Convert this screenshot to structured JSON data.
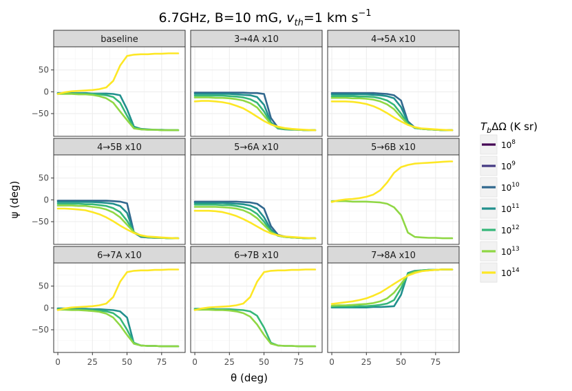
{
  "chart_data": {
    "type": "line",
    "title": "6.7GHz, B=10 mG, v_th=1 km s^-1",
    "title_parts": {
      "prefix": "6.7GHz, B=10 mG, ",
      "var": "v",
      "var_sub": "th",
      "mid": "=1 km s",
      "sup": "−1"
    },
    "xlabel": "θ (deg)",
    "ylabel": "ψ (deg)",
    "xlim": [
      -3,
      92
    ],
    "ylim": [
      -102,
      103
    ],
    "x_ticks": [
      0,
      25,
      50,
      75
    ],
    "x_tick_labels": [
      "0",
      "25",
      "50",
      "75"
    ],
    "y_ticks": [
      50,
      0,
      -50
    ],
    "y_tick_labels": [
      "50",
      "0",
      "−50"
    ],
    "legend": {
      "title_var": "T",
      "title_sub": "b",
      "title_rest": "ΔΩ (K sr)",
      "entries": [
        {
          "base": "10",
          "exp": "8",
          "color": "#440154"
        },
        {
          "base": "10",
          "exp": "9",
          "color": "#443a83"
        },
        {
          "base": "10",
          "exp": "10",
          "color": "#31688e"
        },
        {
          "base": "10",
          "exp": "11",
          "color": "#21908d"
        },
        {
          "base": "10",
          "exp": "12",
          "color": "#35b779"
        },
        {
          "base": "10",
          "exp": "13",
          "color": "#8fd744"
        },
        {
          "base": "10",
          "exp": "14",
          "color": "#fde725"
        }
      ]
    },
    "x": [
      0,
      5,
      10,
      15,
      20,
      25,
      30,
      35,
      40,
      45,
      50,
      55,
      60,
      65,
      70,
      75,
      80,
      85,
      87
    ],
    "panels": [
      {
        "label": "baseline",
        "series": [
          {
            "name": "1e11",
            "color": "#21908d",
            "values": [
              -3,
              -3,
              -3,
              -3,
              -3,
              -4,
              -4,
              -4,
              -5,
              -8,
              -40,
              -80,
              -85,
              -86,
              -87,
              -87,
              -88,
              -88,
              -88
            ]
          },
          {
            "name": "1e12",
            "color": "#35b779",
            "values": [
              -4,
              -4,
              -4,
              -4,
              -5,
              -5,
              -6,
              -8,
              -12,
              -25,
              -55,
              -82,
              -86,
              -87,
              -87,
              -88,
              -88,
              -88,
              -88
            ]
          },
          {
            "name": "1e13",
            "color": "#8fd744",
            "values": [
              -5,
              -5,
              -5,
              -6,
              -6,
              -7,
              -10,
              -15,
              -25,
              -45,
              -65,
              -84,
              -86,
              -87,
              -87,
              -88,
              -88,
              -88,
              -88
            ]
          },
          {
            "name": "1e14",
            "color": "#fde725",
            "values": [
              -5,
              -1,
              1,
              2,
              3,
              4,
              6,
              10,
              25,
              60,
              82,
              85,
              86,
              86,
              87,
              87,
              88,
              88,
              88
            ]
          }
        ]
      },
      {
        "label": "3→4A x10",
        "series": [
          {
            "name": "1e10",
            "color": "#31688e",
            "values": [
              -2,
              -2,
              -2,
              -2,
              -2,
              -2,
              -2,
              -2,
              -3,
              -3,
              -5,
              -60,
              -82,
              -85,
              -86,
              -87,
              -88,
              -88,
              -88
            ]
          },
          {
            "name": "1e11",
            "color": "#21908d",
            "values": [
              -5,
              -5,
              -5,
              -5,
              -5,
              -5,
              -6,
              -7,
              -8,
              -12,
              -30,
              -70,
              -84,
              -86,
              -87,
              -87,
              -88,
              -88,
              -88
            ]
          },
          {
            "name": "1e12",
            "color": "#35b779",
            "values": [
              -9,
              -9,
              -9,
              -9,
              -9,
              -10,
              -11,
              -13,
              -17,
              -25,
              -45,
              -72,
              -83,
              -85,
              -86,
              -87,
              -88,
              -88,
              -88
            ]
          },
          {
            "name": "1e13",
            "color": "#8fd744",
            "values": [
              -13,
              -13,
              -13,
              -14,
              -14,
              -15,
              -17,
              -20,
              -26,
              -36,
              -55,
              -74,
              -82,
              -85,
              -86,
              -87,
              -88,
              -88,
              -88
            ]
          },
          {
            "name": "1e14",
            "color": "#fde725",
            "values": [
              -22,
              -21,
              -21,
              -22,
              -24,
              -27,
              -32,
              -38,
              -47,
              -57,
              -67,
              -75,
              -80,
              -83,
              -85,
              -86,
              -87,
              -88,
              -88
            ]
          }
        ]
      },
      {
        "label": "4→5A x10",
        "series": [
          {
            "name": "1e10",
            "color": "#31688e",
            "values": [
              -3,
              -3,
              -3,
              -3,
              -3,
              -3,
              -3,
              -4,
              -5,
              -8,
              -20,
              -68,
              -82,
              -85,
              -86,
              -87,
              -88,
              -88,
              -88
            ]
          },
          {
            "name": "1e11",
            "color": "#21908d",
            "values": [
              -6,
              -6,
              -6,
              -6,
              -6,
              -6,
              -7,
              -8,
              -10,
              -15,
              -35,
              -70,
              -83,
              -85,
              -86,
              -87,
              -88,
              -88,
              -88
            ]
          },
          {
            "name": "1e12",
            "color": "#35b779",
            "values": [
              -10,
              -10,
              -10,
              -10,
              -11,
              -11,
              -12,
              -15,
              -20,
              -30,
              -50,
              -73,
              -83,
              -85,
              -86,
              -87,
              -88,
              -88,
              -88
            ]
          },
          {
            "name": "1e13",
            "color": "#8fd744",
            "values": [
              -14,
              -14,
              -14,
              -15,
              -15,
              -16,
              -18,
              -22,
              -29,
              -40,
              -58,
              -75,
              -82,
              -85,
              -86,
              -87,
              -88,
              -88,
              -88
            ]
          },
          {
            "name": "1e14",
            "color": "#fde725",
            "values": [
              -22,
              -22,
              -22,
              -23,
              -25,
              -28,
              -33,
              -40,
              -49,
              -59,
              -68,
              -76,
              -81,
              -84,
              -85,
              -86,
              -87,
              -88,
              -88
            ]
          }
        ]
      },
      {
        "label": "4→5B x10",
        "series": [
          {
            "name": "1e10",
            "color": "#31688e",
            "values": [
              -2,
              -2,
              -2,
              -2,
              -2,
              -2,
              -2,
              -2,
              -3,
              -4,
              -8,
              -75,
              -85,
              -86,
              -87,
              -87,
              -88,
              -88,
              -88
            ]
          },
          {
            "name": "1e11",
            "color": "#21908d",
            "values": [
              -5,
              -5,
              -5,
              -5,
              -5,
              -5,
              -6,
              -7,
              -9,
              -14,
              -30,
              -75,
              -84,
              -86,
              -87,
              -87,
              -88,
              -88,
              -88
            ]
          },
          {
            "name": "1e12",
            "color": "#35b779",
            "values": [
              -9,
              -9,
              -9,
              -9,
              -10,
              -10,
              -12,
              -14,
              -19,
              -28,
              -48,
              -74,
              -83,
              -85,
              -86,
              -87,
              -88,
              -88,
              -88
            ]
          },
          {
            "name": "1e13",
            "color": "#8fd744",
            "values": [
              -13,
              -13,
              -13,
              -14,
              -14,
              -16,
              -18,
              -22,
              -29,
              -40,
              -57,
              -74,
              -82,
              -85,
              -86,
              -87,
              -88,
              -88,
              -88
            ]
          },
          {
            "name": "1e14",
            "color": "#fde725",
            "values": [
              -20,
              -20,
              -21,
              -22,
              -24,
              -28,
              -33,
              -40,
              -49,
              -59,
              -68,
              -76,
              -81,
              -84,
              -85,
              -86,
              -87,
              -88,
              -88
            ]
          }
        ]
      },
      {
        "label": "5→6A x10",
        "series": [
          {
            "name": "1e10",
            "color": "#31688e",
            "values": [
              -4,
              -4,
              -4,
              -4,
              -4,
              -4,
              -4,
              -5,
              -6,
              -9,
              -20,
              -60,
              -80,
              -84,
              -86,
              -87,
              -88,
              -88,
              -88
            ]
          },
          {
            "name": "1e11",
            "color": "#21908d",
            "values": [
              -7,
              -7,
              -7,
              -7,
              -7,
              -8,
              -9,
              -10,
              -13,
              -20,
              -40,
              -68,
              -82,
              -85,
              -86,
              -87,
              -88,
              -88,
              -88
            ]
          },
          {
            "name": "1e12",
            "color": "#35b779",
            "values": [
              -11,
              -11,
              -11,
              -11,
              -12,
              -12,
              -14,
              -17,
              -22,
              -32,
              -50,
              -72,
              -82,
              -85,
              -86,
              -87,
              -88,
              -88,
              -88
            ]
          },
          {
            "name": "1e13",
            "color": "#8fd744",
            "values": [
              -16,
              -16,
              -16,
              -16,
              -17,
              -18,
              -20,
              -24,
              -31,
              -42,
              -58,
              -74,
              -82,
              -85,
              -86,
              -87,
              -88,
              -88,
              -88
            ]
          },
          {
            "name": "1e14",
            "color": "#fde725",
            "values": [
              -25,
              -25,
              -25,
              -26,
              -28,
              -32,
              -37,
              -44,
              -52,
              -61,
              -70,
              -77,
              -81,
              -84,
              -85,
              -86,
              -87,
              -88,
              -88
            ]
          }
        ]
      },
      {
        "label": "5→6B x10",
        "series": [
          {
            "name": "1e13",
            "color": "#8fd744",
            "values": [
              -3,
              -3,
              -3,
              -4,
              -4,
              -4,
              -5,
              -6,
              -9,
              -17,
              -35,
              -75,
              -85,
              -86,
              -87,
              -87,
              -88,
              -88,
              -88
            ]
          },
          {
            "name": "1e14",
            "color": "#fde725",
            "values": [
              -5,
              -1,
              1,
              2,
              4,
              7,
              12,
              22,
              40,
              62,
              75,
              80,
              83,
              84,
              85,
              86,
              87,
              88,
              88
            ]
          }
        ]
      },
      {
        "label": "6→7A x10",
        "series": [
          {
            "name": "1e11",
            "color": "#21908d",
            "values": [
              -1,
              -1,
              -2,
              -2,
              -2,
              -3,
              -3,
              -4,
              -5,
              -8,
              -22,
              -82,
              -86,
              -87,
              -87,
              -88,
              -88,
              -88,
              -88
            ]
          },
          {
            "name": "1e12",
            "color": "#35b779",
            "values": [
              -3,
              -3,
              -3,
              -4,
              -4,
              -5,
              -6,
              -8,
              -12,
              -24,
              -50,
              -80,
              -86,
              -87,
              -87,
              -88,
              -88,
              -88,
              -88
            ]
          },
          {
            "name": "1e13",
            "color": "#8fd744",
            "values": [
              -4,
              -4,
              -5,
              -5,
              -6,
              -7,
              -9,
              -13,
              -22,
              -40,
              -62,
              -82,
              -86,
              -87,
              -87,
              -88,
              -88,
              -88,
              -88
            ]
          },
          {
            "name": "1e14",
            "color": "#fde725",
            "values": [
              -5,
              -1,
              1,
              2,
              3,
              4,
              6,
              10,
              25,
              60,
              82,
              85,
              86,
              86,
              87,
              87,
              88,
              88,
              88
            ]
          }
        ]
      },
      {
        "label": "6→7B x10",
        "series": [
          {
            "name": "1e12",
            "color": "#35b779",
            "values": [
              -2,
              -2,
              -2,
              -3,
              -3,
              -3,
              -4,
              -5,
              -8,
              -18,
              -45,
              -80,
              -86,
              -87,
              -87,
              -88,
              -88,
              -88,
              -88
            ]
          },
          {
            "name": "1e13",
            "color": "#8fd744",
            "values": [
              -4,
              -4,
              -4,
              -5,
              -5,
              -6,
              -8,
              -12,
              -20,
              -38,
              -62,
              -82,
              -86,
              -87,
              -87,
              -88,
              -88,
              -88,
              -88
            ]
          },
          {
            "name": "1e14",
            "color": "#fde725",
            "values": [
              -5,
              -1,
              1,
              2,
              3,
              4,
              6,
              10,
              25,
              60,
              82,
              85,
              86,
              86,
              87,
              87,
              88,
              88,
              88
            ]
          }
        ]
      },
      {
        "label": "7→8A x10",
        "series": [
          {
            "name": "1e11",
            "color": "#21908d",
            "values": [
              1,
              1,
              1,
              1,
              1,
              1,
              2,
              2,
              3,
              4,
              30,
              80,
              85,
              86,
              87,
              87,
              88,
              88,
              88
            ]
          },
          {
            "name": "1e12",
            "color": "#35b779",
            "values": [
              3,
              3,
              3,
              3,
              4,
              4,
              5,
              7,
              10,
              18,
              45,
              78,
              84,
              86,
              87,
              87,
              88,
              88,
              88
            ]
          },
          {
            "name": "1e13",
            "color": "#8fd744",
            "values": [
              5,
              6,
              6,
              7,
              8,
              9,
              11,
              15,
              22,
              35,
              55,
              76,
              83,
              85,
              86,
              87,
              88,
              88,
              88
            ]
          },
          {
            "name": "1e14",
            "color": "#fde725",
            "values": [
              9,
              11,
              13,
              15,
              18,
              22,
              28,
              35,
              45,
              55,
              65,
              74,
              80,
              84,
              86,
              87,
              88,
              88,
              88
            ]
          }
        ]
      }
    ]
  }
}
